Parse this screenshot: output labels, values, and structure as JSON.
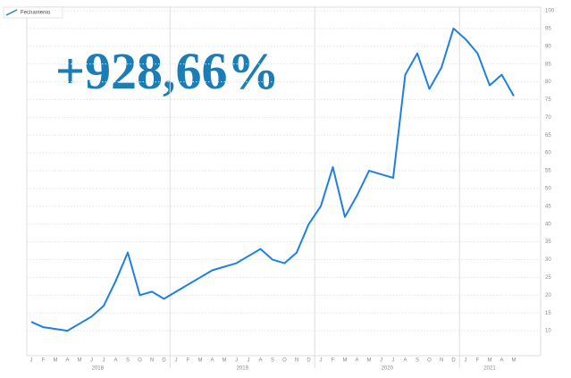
{
  "chart_data": {
    "type": "line",
    "annotation": "+928,66%",
    "x": [
      "2018-01",
      "2018-02",
      "2018-03",
      "2018-04",
      "2018-05",
      "2018-06",
      "2018-07",
      "2018-08",
      "2018-09",
      "2018-10",
      "2018-11",
      "2018-12",
      "2019-01",
      "2019-02",
      "2019-03",
      "2019-04",
      "2019-05",
      "2019-06",
      "2019-07",
      "2019-08",
      "2019-09",
      "2019-10",
      "2019-11",
      "2019-12",
      "2020-01",
      "2020-02",
      "2020-03",
      "2020-04",
      "2020-05",
      "2020-06",
      "2020-07",
      "2020-08",
      "2020-09",
      "2020-10",
      "2020-11",
      "2020-12",
      "2021-01",
      "2021-02",
      "2021-03",
      "2021-04",
      "2021-05"
    ],
    "month_labels": [
      "J",
      "F",
      "M",
      "A",
      "M",
      "J",
      "J",
      "A",
      "S",
      "O",
      "N",
      "D",
      "J",
      "F",
      "M",
      "A",
      "M",
      "J",
      "J",
      "A",
      "S",
      "O",
      "N",
      "D",
      "J",
      "F",
      "M",
      "A",
      "M",
      "J",
      "J",
      "A",
      "S",
      "O",
      "N",
      "D",
      "J",
      "F",
      "M",
      "A",
      "M"
    ],
    "years": [
      "2018",
      "2019",
      "2020",
      "2021"
    ],
    "series": [
      {
        "name": "Fechamento",
        "color": "#1e80e3",
        "values": [
          12.5,
          11,
          10.5,
          10,
          12,
          14,
          17,
          24,
          32,
          20,
          21,
          19,
          21,
          23,
          25,
          27,
          28,
          29,
          31,
          33,
          30,
          29,
          32,
          40,
          45,
          56,
          42,
          48,
          55,
          54,
          53,
          82,
          88,
          78,
          84,
          95,
          92,
          88,
          79,
          82,
          76
        ]
      }
    ],
    "ylim": [
      3,
      101
    ],
    "yticks": [
      10,
      15,
      20,
      25,
      30,
      35,
      40,
      45,
      50,
      55,
      60,
      65,
      70,
      75,
      80,
      85,
      90,
      95,
      100
    ],
    "grid": true,
    "y_axis_side": "right"
  }
}
